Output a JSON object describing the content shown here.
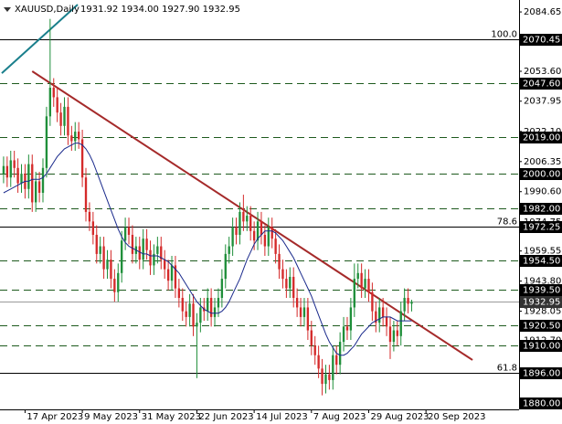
{
  "chart_data": {
    "type": "candlestick",
    "header": {
      "symbol": "XAUUSD,Daily",
      "ohlc": "1931.92 1934.00 1927.90 1932.95"
    },
    "up_color": "#1f8f3a",
    "down_color": "#d42a2a",
    "ma_color": "#1a2a8c",
    "xlim": [
      -1,
      144
    ],
    "ylim": [
      1876.65,
      2090.9
    ],
    "xticks": [
      {
        "value": 6,
        "label": "17 Apr 2023"
      },
      {
        "value": 22,
        "label": "9 May 2023"
      },
      {
        "value": 38,
        "label": "31 May 2023"
      },
      {
        "value": 54,
        "label": "22 Jun 2023"
      },
      {
        "value": 70,
        "label": "14 Jul 2023"
      },
      {
        "value": 86,
        "label": "7 Aug 2023"
      },
      {
        "value": 102,
        "label": "29 Aug 2023"
      },
      {
        "value": 118,
        "label": "20 Sep 2023"
      }
    ],
    "yticks": [
      2084.65,
      {
        "value": 2053.6,
        "label": "2053.60"
      },
      2037.95,
      {
        "value": 2022.1,
        "label": "2022.10"
      },
      2006.35,
      {
        "value": 1990.6,
        "label": "1990.60"
      },
      1974.75,
      1959.55,
      {
        "value": 1943.8,
        "label": "1943.80"
      },
      1928.05,
      {
        "value": 1912.7,
        "label": "1912.70"
      }
    ],
    "levels": [
      {
        "value": 2070.45,
        "label": "2070.45",
        "style": "solid",
        "fib": "100.0"
      },
      {
        "value": 2047.6,
        "label": "2047.60",
        "style": "dashed"
      },
      {
        "value": 2019,
        "label": "2019.00",
        "style": "dashed"
      },
      {
        "value": 2000,
        "label": "2000.00",
        "style": "dashed"
      },
      {
        "value": 1982,
        "label": "1982.00",
        "style": "dashed"
      },
      {
        "value": 1972.25,
        "label": "1972.25",
        "style": "solid",
        "fib": "78.6"
      },
      {
        "value": 1954.5,
        "label": "1954.50",
        "style": "dashed"
      },
      {
        "value": 1939.5,
        "label": "1939.50",
        "style": "dashed"
      },
      {
        "value": 1932.95,
        "label": "1932.95",
        "style": "price"
      },
      {
        "value": 1920.5,
        "label": "1920.50",
        "style": "dashed"
      },
      {
        "value": 1910,
        "label": "1910.00",
        "style": "dashed"
      },
      {
        "value": 1896,
        "label": "1896.00",
        "style": "solid",
        "fib": "61.8"
      },
      {
        "value": 1880,
        "label": "1880.00",
        "style": "none"
      }
    ],
    "trendlines": [
      {
        "color": "#a52a2a",
        "start": [
          8,
          2053.6
        ],
        "end": [
          131,
          1902.5
        ]
      },
      {
        "color": "#1a7f8c",
        "start": [
          -0.5,
          2052.6
        ],
        "end": [
          20.7,
          2088.5
        ]
      }
    ],
    "open": [
      2000,
      2004,
      1998,
      2007,
      2003,
      1995,
      2000,
      1992,
      2005,
      1985,
      1996,
      1990,
      2003,
      2030,
      2045,
      2040,
      2032,
      2025,
      2035,
      2020,
      2017,
      2022,
      2018,
      1998,
      1980,
      1975,
      1968,
      1958,
      1962,
      1950,
      1955,
      1945,
      1938,
      1948,
      1965,
      1972,
      1968,
      1958,
      1962,
      1955,
      1966,
      1960,
      1952,
      1958,
      1962,
      1955,
      1950,
      1944,
      1952,
      1940,
      1935,
      1928,
      1925,
      1932,
      1920,
      1922,
      1930,
      1928,
      1935,
      1925,
      1930,
      1935,
      1945,
      1958,
      1962,
      1972,
      1968,
      1980,
      1975,
      1978,
      1970,
      1965,
      1975,
      1968,
      1962,
      1972,
      1966,
      1958,
      1950,
      1945,
      1940,
      1946,
      1935,
      1930,
      1925,
      1930,
      1918,
      1910,
      1905,
      1898,
      1890,
      1895,
      1892,
      1905,
      1900,
      1912,
      1920,
      1918,
      1930,
      1945,
      1948,
      1940,
      1945,
      1938,
      1928,
      1922,
      1930,
      1925,
      1920,
      1912,
      1918,
      1915,
      1928,
      1935,
      1931.92
    ],
    "high": [
      2009,
      2009,
      2012,
      2012,
      2008,
      2005,
      2005,
      2010,
      2010,
      2001,
      2001,
      2008,
      2035,
      2081,
      2050,
      2045,
      2037,
      2040,
      2040,
      2025,
      2027,
      2027,
      2023,
      2003,
      1985,
      1980,
      1973,
      1967,
      1967,
      1960,
      1960,
      1950,
      1953,
      1970,
      1977,
      1977,
      1973,
      1967,
      1967,
      1971,
      1971,
      1965,
      1963,
      1967,
      1967,
      1960,
      1955,
      1957,
      1957,
      1945,
      1940,
      1933,
      1937,
      1937,
      1927,
      1935,
      1935,
      1940,
      1940,
      1935,
      1940,
      1950,
      1963,
      1967,
      1977,
      1977,
      1985,
      1989,
      1983,
      1983,
      1975,
      1980,
      1980,
      1973,
      1977,
      1977,
      1971,
      1963,
      1955,
      1950,
      1951,
      1951,
      1940,
      1935,
      1935,
      1935,
      1923,
      1915,
      1910,
      1903,
      1900,
      1900,
      1910,
      1910,
      1917,
      1925,
      1925,
      1935,
      1953,
      1953,
      1953,
      1950,
      1950,
      1943,
      1933,
      1935,
      1935,
      1930,
      1925,
      1923,
      1923,
      1933,
      1940,
      1940,
      1934
    ],
    "low": [
      1995,
      1993,
      1993,
      1998,
      1990,
      1990,
      1987,
      1987,
      1980,
      1980,
      1985,
      1985,
      1998,
      2025,
      2035,
      2027,
      2020,
      2020,
      2015,
      2012,
      2012,
      2013,
      1993,
      1975,
      1970,
      1963,
      1953,
      1953,
      1945,
      1945,
      1940,
      1933,
      1933,
      1943,
      1960,
      1963,
      1953,
      1953,
      1950,
      1950,
      1955,
      1947,
      1947,
      1953,
      1950,
      1945,
      1939,
      1939,
      1935,
      1930,
      1923,
      1920,
      1920,
      1915,
      1893,
      1917,
      1923,
      1923,
      1920,
      1920,
      1925,
      1930,
      1940,
      1953,
      1957,
      1963,
      1963,
      1970,
      1970,
      1965,
      1960,
      1960,
      1963,
      1957,
      1957,
      1961,
      1953,
      1945,
      1940,
      1935,
      1935,
      1930,
      1925,
      1920,
      1920,
      1913,
      1905,
      1900,
      1893,
      1884,
      1885,
      1887,
      1887,
      1895,
      1895,
      1907,
      1913,
      1913,
      1925,
      1940,
      1935,
      1935,
      1933,
      1923,
      1917,
      1917,
      1920,
      1915,
      1903,
      1907,
      1910,
      1910,
      1923,
      1926.9,
      1927.9
    ],
    "close": [
      2004,
      1998,
      2007,
      2003,
      1995,
      2000,
      1992,
      2005,
      1985,
      1996,
      1990,
      2003,
      2030,
      2045,
      2040,
      2032,
      2025,
      2035,
      2020,
      2017,
      2022,
      2018,
      1998,
      1980,
      1975,
      1968,
      1958,
      1962,
      1950,
      1955,
      1945,
      1938,
      1948,
      1965,
      1972,
      1968,
      1958,
      1962,
      1955,
      1966,
      1960,
      1952,
      1958,
      1962,
      1955,
      1950,
      1944,
      1952,
      1940,
      1935,
      1928,
      1925,
      1932,
      1920,
      1922,
      1930,
      1928,
      1935,
      1925,
      1930,
      1935,
      1945,
      1958,
      1962,
      1972,
      1968,
      1980,
      1975,
      1978,
      1970,
      1965,
      1975,
      1968,
      1962,
      1972,
      1966,
      1958,
      1950,
      1945,
      1940,
      1946,
      1935,
      1930,
      1925,
      1930,
      1918,
      1910,
      1905,
      1898,
      1890,
      1895,
      1892,
      1905,
      1900,
      1912,
      1920,
      1918,
      1930,
      1945,
      1948,
      1940,
      1945,
      1938,
      1928,
      1922,
      1930,
      1925,
      1920,
      1912,
      1918,
      1915,
      1928,
      1935,
      1931.92,
      1932.95
    ],
    "ma": [
      1990,
      1991,
      1992,
      1993,
      1994,
      1995,
      1996,
      1996,
      1997,
      1997,
      1997,
      1998,
      2000,
      2003,
      2006,
      2009,
      2011,
      2013,
      2014,
      2015,
      2016,
      2016,
      2015,
      2013,
      2010,
      2006,
      2001,
      1996,
      1991,
      1986,
      1981,
      1976,
      1971,
      1967,
      1964,
      1962,
      1961,
      1960,
      1959,
      1958,
      1958,
      1957,
      1957,
      1957,
      1956,
      1955,
      1954,
      1952,
      1950,
      1948,
      1945,
      1942,
      1939,
      1936,
      1933,
      1931,
      1929,
      1928,
      1927,
      1927,
      1927,
      1928,
      1930,
      1933,
      1937,
      1941,
      1945,
      1950,
      1955,
      1959,
      1963,
      1966,
      1968,
      1970,
      1970,
      1970,
      1969,
      1967,
      1965,
      1962,
      1959,
      1956,
      1952,
      1948,
      1944,
      1940,
      1936,
      1931,
      1926,
      1921,
      1916,
      1912,
      1909,
      1906,
      1905,
      1905,
      1906,
      1908,
      1910,
      1913,
      1916,
      1918,
      1920,
      1922,
      1923,
      1924,
      1925,
      1925,
      1925,
      1924,
      1923,
      1923,
      1923,
      1923,
      1923
    ]
  }
}
